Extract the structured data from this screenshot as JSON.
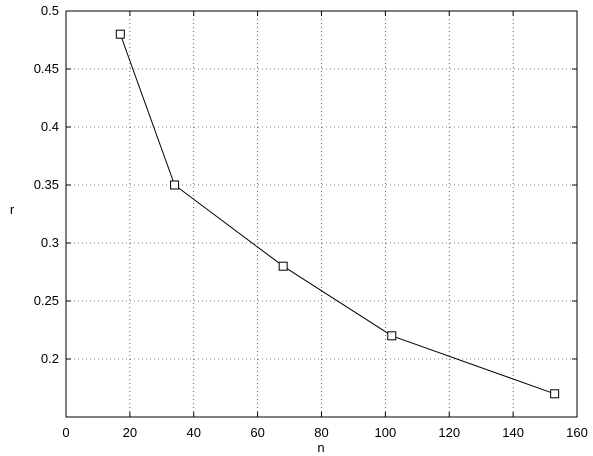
{
  "chart_data": {
    "type": "line",
    "title": "",
    "xlabel": "n",
    "ylabel": "r",
    "xlim": [
      0,
      160
    ],
    "ylim": [
      0.15,
      0.5
    ],
    "xticks": [
      0,
      20,
      40,
      60,
      80,
      100,
      120,
      140,
      160
    ],
    "xtick_labels": [
      "0",
      "20",
      "40",
      "60",
      "80",
      "100",
      "120",
      "140",
      "160"
    ],
    "yticks": [
      0.2,
      0.25,
      0.3,
      0.35,
      0.4,
      0.45,
      0.5
    ],
    "ytick_labels": [
      "0.2",
      "0.25",
      "0.3",
      "0.35",
      "0.4",
      "0.45",
      "0.5"
    ],
    "grid": true,
    "series": [
      {
        "marker": "square",
        "color": "#000000",
        "x": [
          17,
          34,
          68,
          102,
          153
        ],
        "y": [
          0.48,
          0.35,
          0.28,
          0.22,
          0.17
        ]
      }
    ]
  }
}
